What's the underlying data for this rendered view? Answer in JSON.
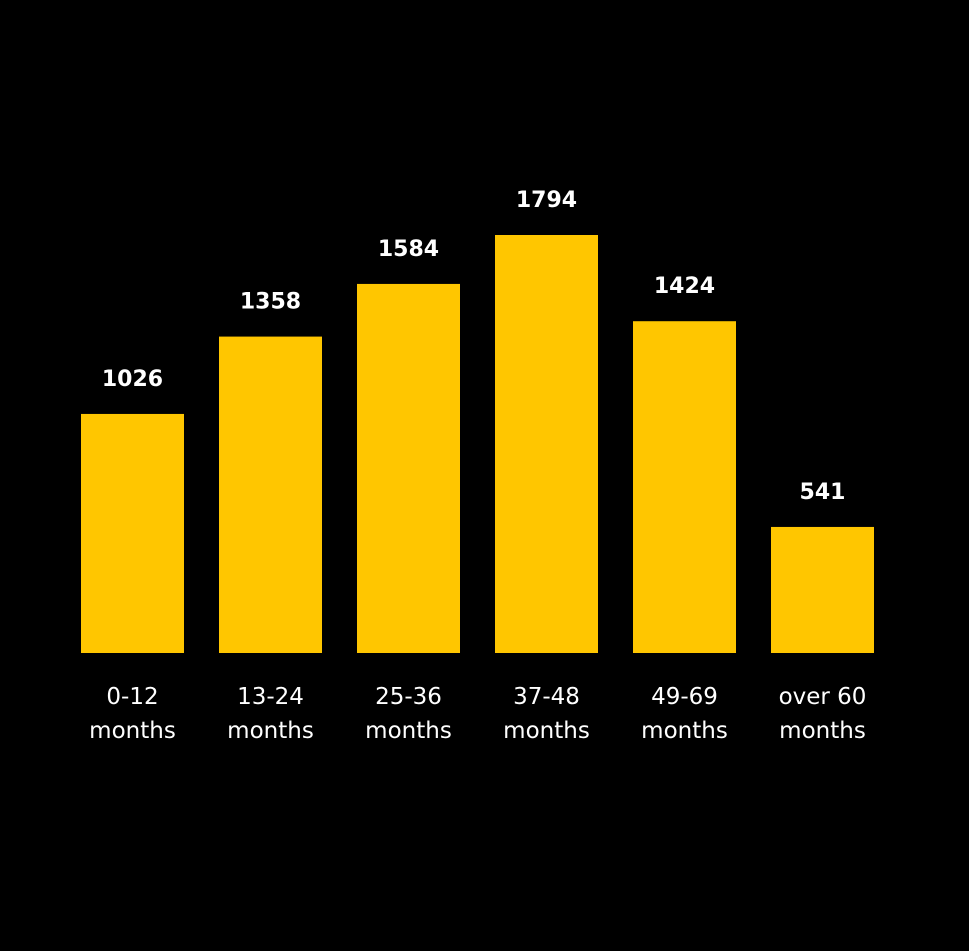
{
  "colors": {
    "background": "#000000",
    "bar": "#ffc600",
    "text": "#ffffff"
  },
  "chart_data": {
    "type": "bar",
    "title": "",
    "xlabel": "",
    "ylabel": "",
    "grid": false,
    "legend": "none",
    "ylim": [
      0,
      1794
    ],
    "categories": [
      [
        "0-12",
        "months"
      ],
      [
        "13-24",
        "months"
      ],
      [
        "25-36",
        "months"
      ],
      [
        "37-48",
        "months"
      ],
      [
        "49-69",
        "months"
      ],
      [
        "over 60",
        "months"
      ]
    ],
    "values": [
      1026,
      1358,
      1584,
      1794,
      1424,
      541
    ],
    "data_labels": [
      "1026",
      "1358",
      "1584",
      "1794",
      "1424",
      "541"
    ]
  }
}
